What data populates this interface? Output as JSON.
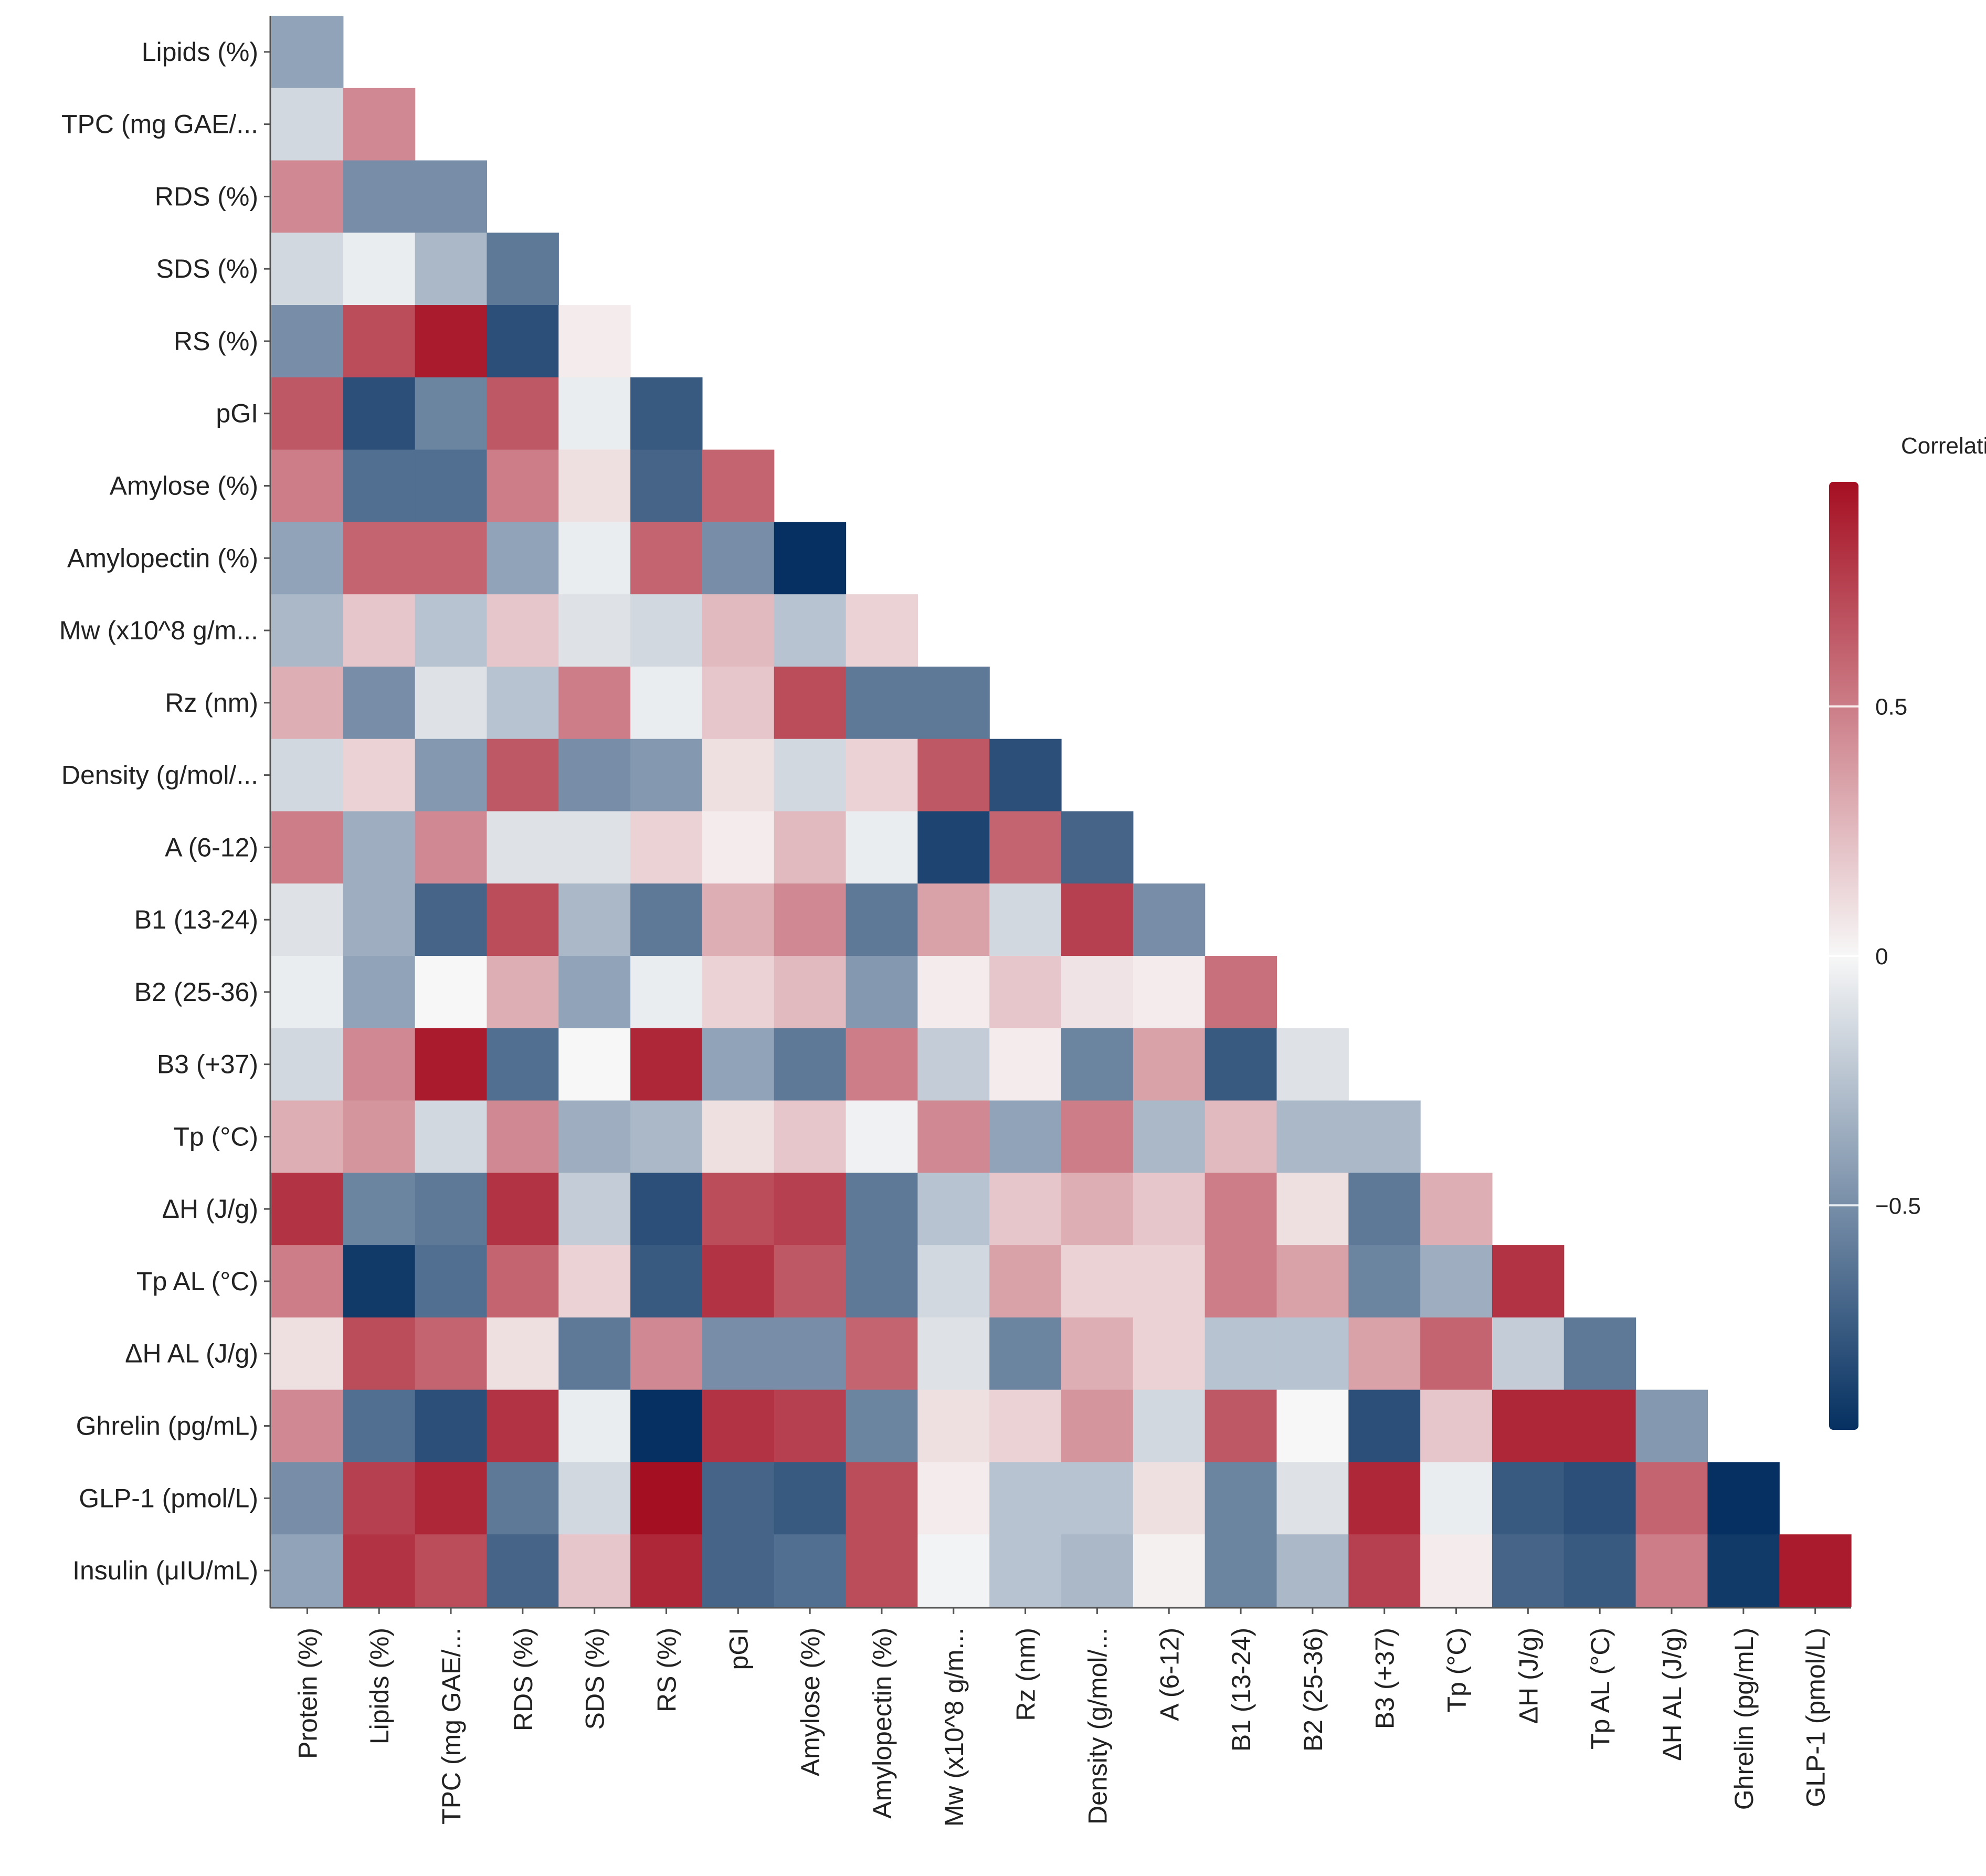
{
  "chart_data": {
    "type": "heatmap",
    "title": "",
    "layout": "lower-triangle",
    "row_labels": [
      "Lipids (%)",
      "TPC (mg GAE/...",
      "RDS (%)",
      "SDS (%)",
      "RS (%)",
      "pGI",
      "Amylose (%)",
      "Amylopectin (%)",
      "Mw (x10^8 g/m...",
      "Rz (nm)",
      "Density (g/mol/...",
      "A (6-12)",
      "B1 (13-24)",
      "B2 (25-36)",
      "B3 (+37)",
      "Tp (°C)",
      "ΔH (J/g)",
      "Tp AL (°C)",
      "ΔH AL (J/g)",
      "Ghrelin (pg/mL)",
      "GLP-1 (pmol/L)",
      "Insulin (μIU/mL)"
    ],
    "col_labels": [
      "Protein (%)",
      "Lipids (%)",
      "TPC (mg GAE/...",
      "RDS (%)",
      "SDS (%)",
      "RS (%)",
      "pGI",
      "Amylose (%)",
      "Amylopectin (%)",
      "Mw (x10^8 g/m...",
      "Rz (nm)",
      "Density (g/mol/...",
      "A (6-12)",
      "B1 (13-24)",
      "B2 (25-36)",
      "B3 (+37)",
      "Tp (°C)",
      "ΔH (J/g)",
      "Tp AL (°C)",
      "ΔH AL (J/g)",
      "Ghrelin (pg/mL)",
      "GLP-1 (pmol/L)"
    ],
    "values": [
      [
        -0.4
      ],
      [
        -0.15,
        0.45
      ],
      [
        0.45,
        -0.5,
        -0.5
      ],
      [
        -0.15,
        -0.05,
        -0.3,
        -0.6
      ],
      [
        -0.5,
        0.7,
        0.9,
        -0.8,
        0.05
      ],
      [
        0.65,
        -0.8,
        -0.55,
        0.65,
        -0.05,
        -0.75
      ],
      [
        0.5,
        -0.65,
        -0.65,
        0.5,
        0.1,
        -0.7,
        0.6
      ],
      [
        -0.4,
        0.6,
        0.6,
        -0.4,
        -0.05,
        0.6,
        -0.5,
        -0.95
      ],
      [
        -0.3,
        0.2,
        -0.25,
        0.2,
        -0.1,
        -0.15,
        0.25,
        -0.25,
        0.15
      ],
      [
        0.3,
        -0.5,
        -0.1,
        -0.25,
        0.5,
        -0.05,
        0.2,
        0.7,
        -0.6,
        -0.6
      ],
      [
        -0.15,
        0.15,
        -0.45,
        0.65,
        -0.5,
        -0.45,
        0.1,
        -0.15,
        0.15,
        0.65,
        -0.8
      ],
      [
        0.5,
        -0.35,
        0.45,
        -0.1,
        -0.1,
        0.15,
        0.05,
        0.25,
        -0.05,
        -0.85,
        0.6,
        -0.7
      ],
      [
        -0.1,
        -0.35,
        -0.7,
        0.7,
        -0.3,
        -0.6,
        0.3,
        0.45,
        -0.6,
        0.35,
        -0.15,
        0.75,
        -0.5
      ],
      [
        -0.05,
        -0.4,
        0.0,
        0.3,
        -0.4,
        -0.05,
        0.15,
        0.25,
        -0.45,
        0.05,
        0.2,
        0.08,
        0.05,
        0.55
      ],
      [
        -0.15,
        0.45,
        0.9,
        -0.65,
        0.0,
        0.85,
        -0.4,
        -0.6,
        0.5,
        -0.2,
        0.05,
        -0.55,
        0.35,
        -0.75,
        -0.1
      ],
      [
        0.3,
        0.4,
        -0.15,
        0.45,
        -0.35,
        -0.3,
        0.1,
        0.2,
        -0.03,
        0.45,
        -0.4,
        0.5,
        -0.3,
        0.25,
        -0.3,
        -0.3
      ],
      [
        0.8,
        -0.55,
        -0.6,
        0.8,
        -0.2,
        -0.8,
        0.7,
        0.75,
        -0.6,
        -0.25,
        0.2,
        0.3,
        0.2,
        0.5,
        0.1,
        -0.6,
        0.3
      ],
      [
        0.5,
        -0.9,
        -0.65,
        0.6,
        0.15,
        -0.75,
        0.8,
        0.65,
        -0.6,
        -0.15,
        0.35,
        0.15,
        0.15,
        0.5,
        0.35,
        -0.55,
        -0.35,
        0.8
      ],
      [
        0.1,
        0.7,
        0.6,
        0.1,
        -0.6,
        0.45,
        -0.5,
        -0.5,
        0.6,
        -0.1,
        -0.55,
        0.3,
        0.15,
        -0.25,
        -0.25,
        0.35,
        0.6,
        -0.2,
        -0.6
      ],
      [
        0.45,
        -0.65,
        -0.8,
        0.8,
        -0.05,
        -0.95,
        0.8,
        0.75,
        -0.55,
        0.1,
        0.15,
        0.4,
        -0.15,
        0.65,
        0.0,
        -0.8,
        0.2,
        0.85,
        0.85,
        -0.45
      ],
      [
        -0.5,
        0.75,
        0.85,
        -0.6,
        -0.15,
        0.95,
        -0.7,
        -0.75,
        0.7,
        0.05,
        -0.25,
        -0.25,
        0.1,
        -0.55,
        -0.1,
        0.85,
        -0.05,
        -0.75,
        -0.8,
        0.6,
        -0.95
      ],
      [
        -0.4,
        0.8,
        0.7,
        -0.7,
        0.2,
        0.85,
        -0.7,
        -0.65,
        0.7,
        -0.02,
        -0.25,
        -0.3,
        0.03,
        -0.55,
        -0.3,
        0.75,
        0.05,
        -0.7,
        -0.75,
        0.5,
        -0.9,
        0.9
      ]
    ],
    "colorbar": {
      "title": "Correlation",
      "range": [
        -0.95,
        0.95
      ],
      "ticks": [
        {
          "value": 0.5,
          "label": "0.5"
        },
        {
          "value": 0,
          "label": "0"
        },
        {
          "value": -0.5,
          "label": "−0.5"
        }
      ],
      "colors": {
        "negative": "#053061",
        "neutral": "#f7f7f7",
        "positive": "#a50f22"
      }
    },
    "legend": "right"
  }
}
